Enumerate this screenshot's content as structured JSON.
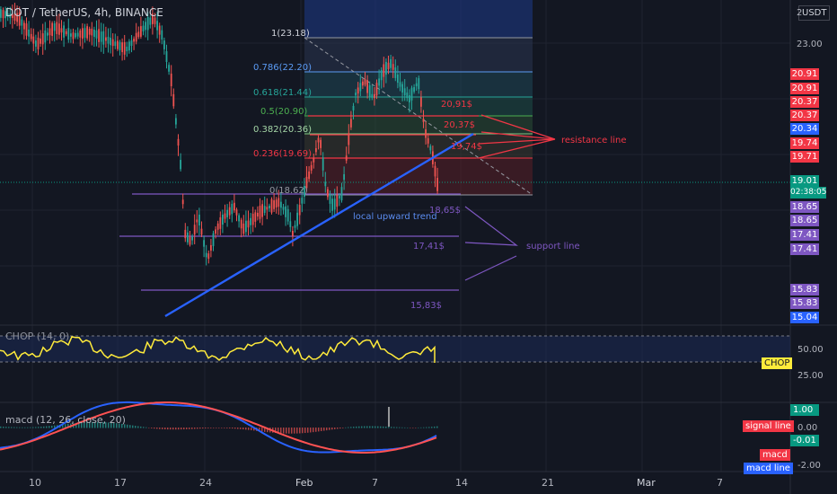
{
  "symbol": {
    "title": "DOT / TetherUS, 4h, BINANCE",
    "currency": "USDT"
  },
  "colors": {
    "background": "#131722",
    "grid": "#1f2330",
    "up": "#26a69a",
    "down": "#ef5350",
    "trend_line": "#2962ff",
    "level_line": "#7e57c2",
    "resistance": "#f23645",
    "chop_line": "#ffeb3b",
    "macd_line": "#2962ff",
    "signal_line": "#ff5252",
    "badge_red": "#f23645",
    "badge_purple": "#7e57c2",
    "badge_blue": "#2962ff",
    "badge_teal": "#089981"
  },
  "price_axis": {
    "ticks": [
      "23.00",
      "2"
    ],
    "badges": [
      {
        "text": "20.91",
        "kind": "red"
      },
      {
        "text": "20.91",
        "kind": "red"
      },
      {
        "text": "20.37",
        "kind": "red"
      },
      {
        "text": "20.37",
        "kind": "red"
      },
      {
        "text": "20.34",
        "kind": "blue"
      },
      {
        "text": "19.74",
        "kind": "red"
      },
      {
        "text": "19.71",
        "kind": "red"
      },
      {
        "text": "19.01",
        "kind": "teal"
      },
      {
        "text": "02:38:05",
        "kind": "teal"
      },
      {
        "text": "18.65",
        "kind": "purple"
      },
      {
        "text": "18.65",
        "kind": "purple"
      },
      {
        "text": "17.41",
        "kind": "purple"
      },
      {
        "text": "17.41",
        "kind": "purple"
      },
      {
        "text": "15.83",
        "kind": "purple"
      },
      {
        "text": "15.83",
        "kind": "purple"
      },
      {
        "text": "15.04",
        "kind": "blue"
      }
    ]
  },
  "time_axis": {
    "labels": [
      "10",
      "17",
      "24",
      "Feb",
      "7",
      "14",
      "21",
      "Mar",
      "7"
    ]
  },
  "fibonacci": {
    "levels": [
      {
        "label": "1(23.18)",
        "price": 23.18
      },
      {
        "label": "0.786(22.20)",
        "price": 22.2
      },
      {
        "label": "0.618(21.44)",
        "price": 21.44
      },
      {
        "label": "0.5(20.90)",
        "price": 20.9
      },
      {
        "label": "0.382(20.36)",
        "price": 20.36
      },
      {
        "label": "0.236(19.69)",
        "price": 19.69
      },
      {
        "label": "0(18.62)",
        "price": 18.62
      }
    ]
  },
  "annotations": {
    "resistance_price_1": "20,91$",
    "resistance_price_2": "20,37$",
    "resistance_price_3": "19,74$",
    "resistance_label": "resistance line",
    "support_price_1": "18,65$",
    "support_price_2": "17,41$",
    "support_price_3": "15,83$",
    "support_label": "support line",
    "trend_label": "local upward trend"
  },
  "chop": {
    "label": "CHOP (14, 0)",
    "ticks": [
      "50.00",
      "25.00"
    ],
    "current_tag": "CHOP"
  },
  "macd": {
    "label": "macd (12, 26, close, 20)",
    "ticks": [
      "1.00",
      "0.00",
      "-2.00"
    ],
    "current_value": "-0.01",
    "signal_tag": "signal line",
    "macd_tag": "macd",
    "macd_line_tag": "macd line"
  }
}
